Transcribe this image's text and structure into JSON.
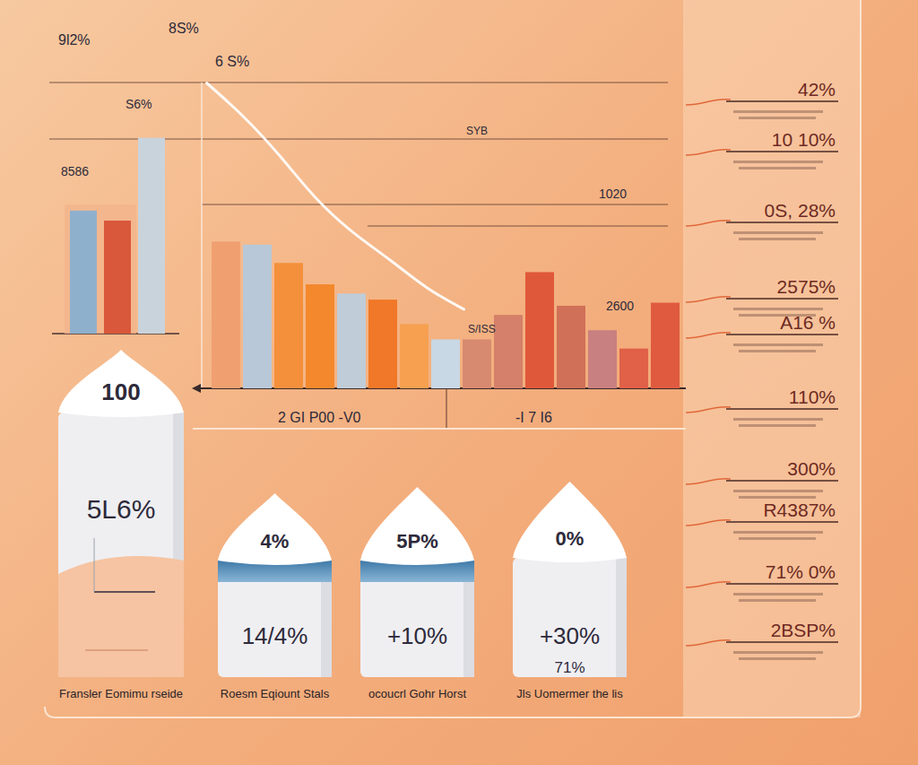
{
  "chart_data": [
    {
      "type": "bar",
      "categories": [
        null,
        null,
        null
      ],
      "values": [
        49,
        45,
        78
      ],
      "colors": [
        "#8fb0cc",
        "#d9573a",
        "#c9d3dc"
      ],
      "ylim": [
        0,
        100
      ],
      "tick_labels": false
    },
    {
      "type": "bar",
      "categories": [
        null,
        null,
        null,
        null,
        null,
        null,
        null,
        null,
        null,
        null,
        null,
        null,
        null,
        null,
        null
      ],
      "values": [
        48,
        47,
        41,
        34,
        31,
        29,
        21,
        16,
        16,
        24,
        38,
        27,
        19,
        13,
        28
      ],
      "colors": [
        "#f0a070",
        "#b8c8d8",
        "#f4903c",
        "#f4882c",
        "#c0ccd8",
        "#f07828",
        "#f6a050",
        "#c8d8e4",
        "#d88a70",
        "#d4806a",
        "#e0583a",
        "#d07058",
        "#c88080",
        "#e06048",
        "#e05a40"
      ],
      "ylim": [
        0,
        100
      ],
      "tick_labels": false
    },
    {
      "type": "line",
      "categories": [
        null,
        null,
        null,
        null,
        null,
        null,
        null,
        null
      ],
      "values": [
        100,
        89,
        76,
        62,
        51,
        42,
        33,
        26
      ],
      "color": "#ffffff",
      "ylim": [
        0,
        100
      ],
      "tick_labels": false
    }
  ],
  "annotations": [
    "9l2%",
    "8S%",
    "6 S%",
    "S6%",
    "8586",
    "SYB",
    "1020",
    "2600",
    "S/ISS",
    "2 GI P00 -V0",
    "-I 7 I6"
  ],
  "cylinders": [
    {
      "cap": "100",
      "value_label": "5L6%",
      "caption": "Fransler Eomimu rseide"
    },
    {
      "cap": "4%",
      "value_label": "14/4%",
      "caption": "Roesm Eqiount Stals"
    },
    {
      "cap": "5P%",
      "value_label": "+10%",
      "caption": "ocoucrl Gohr Horst"
    },
    {
      "cap": "0%",
      "value_label": "+30%",
      "note": "71%",
      "caption": "Jls Uomermer the lis"
    }
  ],
  "side_panel": [
    "42%",
    "10 10%",
    "0S, 28%",
    "2575%",
    "A16 %",
    "110%",
    "300%",
    "R4387%",
    "71% 0%",
    "2BSP%"
  ]
}
